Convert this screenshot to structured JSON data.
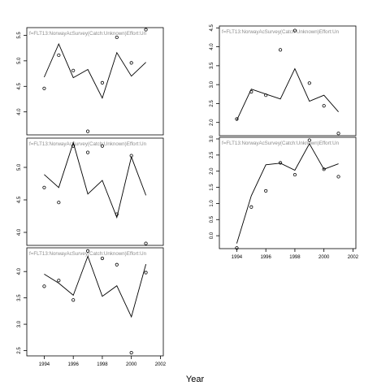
{
  "figure": {
    "xlabel": "Year"
  },
  "chart_data": [
    {
      "type": "line+scatter",
      "title": "f=FLT13:NorwayAcSurvey(Catch:Unknown)Effort:Un",
      "xlim": [
        1992.8,
        2002.2
      ],
      "ylim": [
        3.55,
        5.65
      ],
      "xticks": [],
      "yticks": [
        4.0,
        4.5,
        5.0,
        5.5
      ],
      "ytick_labels": [
        "4.0",
        "4.5",
        "5.0",
        "5.5"
      ],
      "line": {
        "x": [
          1994,
          1995,
          1996,
          1997,
          1998,
          1999,
          2000,
          2001
        ],
        "y": [
          4.68,
          5.33,
          4.67,
          4.83,
          4.27,
          5.16,
          4.7,
          4.97
        ]
      },
      "points": {
        "x": [
          1994,
          1995,
          1996,
          1997,
          1998,
          1999,
          2000,
          2001
        ],
        "y": [
          4.46,
          5.11,
          4.81,
          3.62,
          4.57,
          5.46,
          4.96,
          5.61
        ]
      }
    },
    {
      "type": "line+scatter",
      "title": "f=FLT13:NorwayAcSurvey(Catch:Unknown)Effort:Un",
      "xlim": [
        1992.8,
        2002.2
      ],
      "ylim": [
        1.65,
        4.55
      ],
      "xticks": [],
      "yticks": [
        2.0,
        2.5,
        3.0,
        3.5,
        4.0,
        4.5
      ],
      "ytick_labels": [
        "2.0",
        "2.5",
        "3.0",
        "3.5",
        "4.0",
        "4.5"
      ],
      "line": {
        "x": [
          1994,
          1995,
          1996,
          1997,
          1998,
          1999,
          2000,
          2001
        ],
        "y": [
          2.06,
          2.88,
          2.75,
          2.62,
          3.42,
          2.56,
          2.72,
          2.28
        ]
      },
      "points": {
        "x": [
          1994,
          1995,
          1996,
          1997,
          1998,
          1999,
          2000,
          2001
        ],
        "y": [
          2.09,
          2.81,
          2.72,
          3.92,
          4.43,
          3.04,
          2.44,
          1.71
        ]
      }
    },
    {
      "type": "line+scatter",
      "title": "f=FLT13:NorwayAcSurvey(Catch:Unknown)Effort:Un",
      "xlim": [
        1992.8,
        2002.2
      ],
      "ylim": [
        3.8,
        5.45
      ],
      "xticks": [],
      "yticks": [
        4.0,
        4.5,
        5.0
      ],
      "ytick_labels": [
        "4.0",
        "4.5",
        "5.0"
      ],
      "line": {
        "x": [
          1994,
          1995,
          1996,
          1997,
          1998,
          1999,
          2000,
          2001
        ],
        "y": [
          4.89,
          4.69,
          5.38,
          4.59,
          4.8,
          4.23,
          5.16,
          4.57
        ]
      },
      "points": {
        "x": [
          1994,
          1995,
          1996,
          1997,
          1998,
          1999,
          2000,
          2001
        ],
        "y": [
          4.69,
          4.46,
          5.33,
          5.23,
          5.33,
          4.28,
          5.18,
          3.83
        ]
      }
    },
    {
      "type": "line+scatter",
      "title": "f=FLT13:NorwayAcSurvey(Catch:Unknown)Effort:Un",
      "xlim": [
        1992.8,
        2002.2
      ],
      "ylim": [
        -0.4,
        3.05
      ],
      "xticks": [
        1994,
        1996,
        1998,
        2000,
        2002
      ],
      "xtick_labels": [
        "1994",
        "1996",
        "1998",
        "2000",
        "2002"
      ],
      "yticks": [
        0.0,
        0.5,
        1.0,
        1.5,
        2.0,
        2.5,
        3.0
      ],
      "ytick_labels": [
        "0.0",
        "0.5",
        "1.0",
        "1.5",
        "2.0",
        "2.5",
        "3.0"
      ],
      "line": {
        "x": [
          1994,
          1995,
          1996,
          1997,
          1998,
          1999,
          2000,
          2001
        ],
        "y": [
          -0.24,
          1.24,
          2.2,
          2.25,
          2.03,
          2.85,
          2.06,
          2.23
        ]
      },
      "points": {
        "x": [
          1994,
          1995,
          1996,
          1997,
          1998,
          1999,
          2000,
          2001
        ],
        "y": [
          -0.38,
          0.89,
          1.39,
          2.26,
          1.89,
          2.96,
          2.06,
          1.83
        ]
      }
    },
    {
      "type": "line+scatter",
      "title": "f=FLT13:NorwayAcSurvey(Catch:Unknown)Effort:Un",
      "xlim": [
        1992.8,
        2002.2
      ],
      "ylim": [
        2.4,
        4.45
      ],
      "xticks": [
        1994,
        1996,
        1998,
        2000,
        2002
      ],
      "xtick_labels": [
        "1994",
        "1996",
        "1998",
        "2000",
        "2002"
      ],
      "yticks": [
        2.5,
        3.0,
        3.5,
        4.0
      ],
      "ytick_labels": [
        "2.5",
        "3.0",
        "3.5",
        "4.0"
      ],
      "line": {
        "x": [
          1994,
          1995,
          1996,
          1997,
          1998,
          1999,
          2000,
          2001
        ],
        "y": [
          3.95,
          3.78,
          3.55,
          4.29,
          3.53,
          3.73,
          3.14,
          4.14
        ]
      },
      "points": {
        "x": [
          1994,
          1995,
          1996,
          1997,
          1998,
          1999,
          2000,
          2001
        ],
        "y": [
          3.72,
          3.83,
          3.46,
          4.39,
          4.25,
          4.13,
          2.46,
          3.98
        ]
      }
    }
  ]
}
